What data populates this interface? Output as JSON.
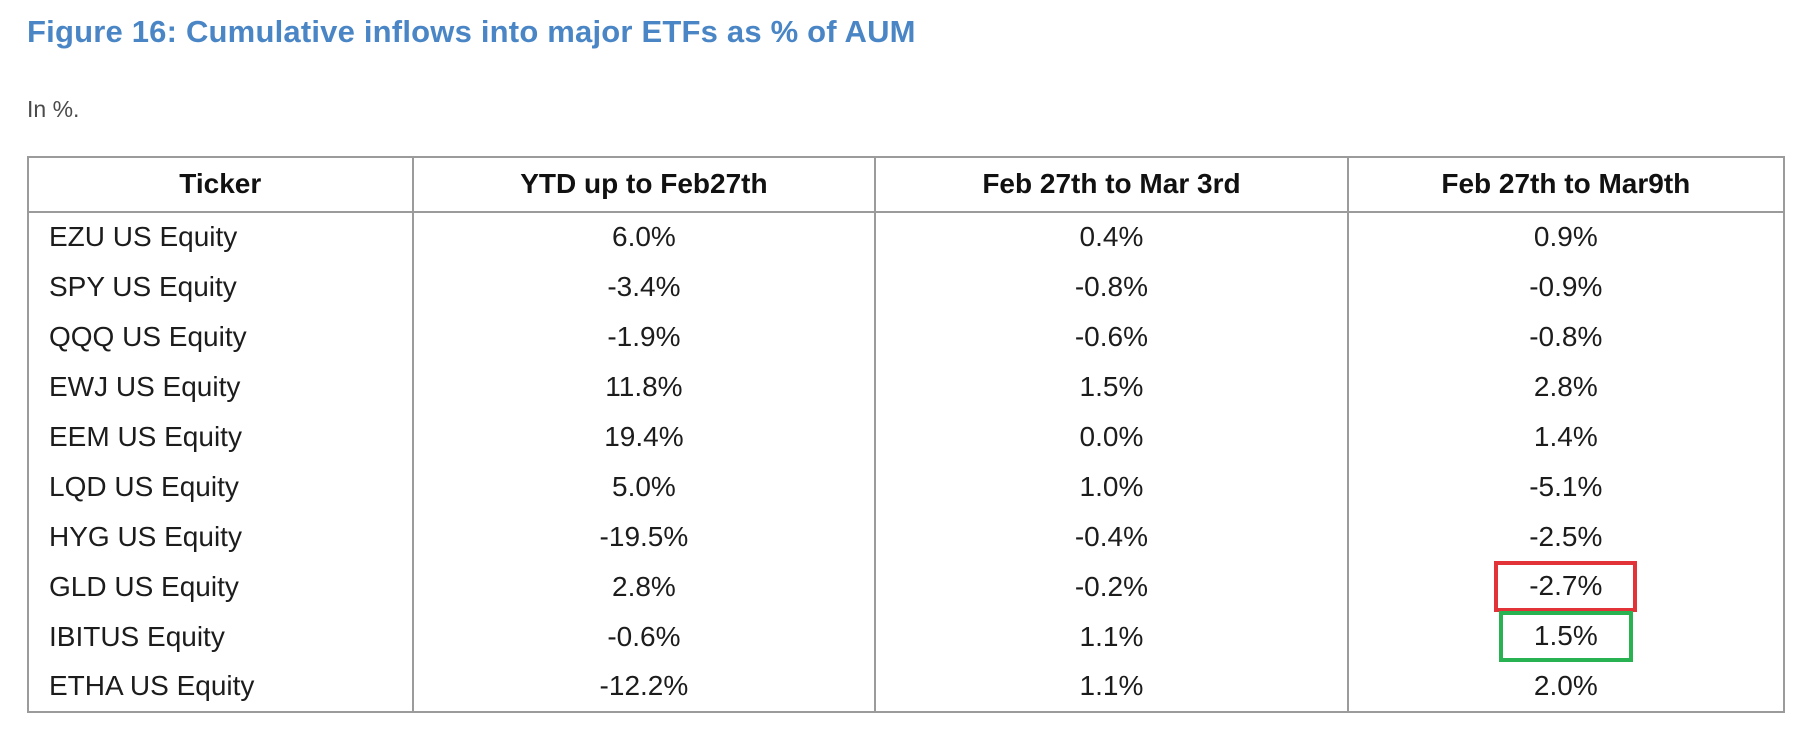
{
  "figure": {
    "title": "Figure 16: Cumulative inflows into major ETFs as % of AUM",
    "subtitle": "In %.",
    "title_color": "#4a86c5",
    "highlight_red_color": "#e23338",
    "highlight_green_color": "#28b252",
    "border_color": "#9b9b9b"
  },
  "chart_data": {
    "type": "table",
    "title": "Cumulative inflows into major ETFs as % of AUM",
    "unit": "%",
    "columns": [
      "Ticker",
      "YTD up to Feb27th",
      "Feb 27th to Mar 3rd",
      "Feb 27th to Mar9th"
    ],
    "rows": [
      {
        "ticker": "EZU US Equity",
        "ytd": "6.0%",
        "mar3": "0.4%",
        "mar9": "0.9%",
        "mar9_highlight": "none"
      },
      {
        "ticker": "SPY US Equity",
        "ytd": "-3.4%",
        "mar3": "-0.8%",
        "mar9": "-0.9%",
        "mar9_highlight": "none"
      },
      {
        "ticker": "QQQ US Equity",
        "ytd": "-1.9%",
        "mar3": "-0.6%",
        "mar9": "-0.8%",
        "mar9_highlight": "none"
      },
      {
        "ticker": "EWJ US Equity",
        "ytd": "11.8%",
        "mar3": "1.5%",
        "mar9": "2.8%",
        "mar9_highlight": "none"
      },
      {
        "ticker": "EEM US Equity",
        "ytd": "19.4%",
        "mar3": "0.0%",
        "mar9": "1.4%",
        "mar9_highlight": "none"
      },
      {
        "ticker": "LQD US Equity",
        "ytd": "5.0%",
        "mar3": "1.0%",
        "mar9": "-5.1%",
        "mar9_highlight": "none"
      },
      {
        "ticker": "HYG US Equity",
        "ytd": "-19.5%",
        "mar3": "-0.4%",
        "mar9": "-2.5%",
        "mar9_highlight": "none"
      },
      {
        "ticker": "GLD US Equity",
        "ytd": "2.8%",
        "mar3": "-0.2%",
        "mar9": "-2.7%",
        "mar9_highlight": "red"
      },
      {
        "ticker": "IBITUS Equity",
        "ytd": "-0.6%",
        "mar3": "1.1%",
        "mar9": "1.5%",
        "mar9_highlight": "green"
      },
      {
        "ticker": "ETHA US Equity",
        "ytd": "-12.2%",
        "mar3": "1.1%",
        "mar9": "2.0%",
        "mar9_highlight": "none"
      }
    ]
  }
}
